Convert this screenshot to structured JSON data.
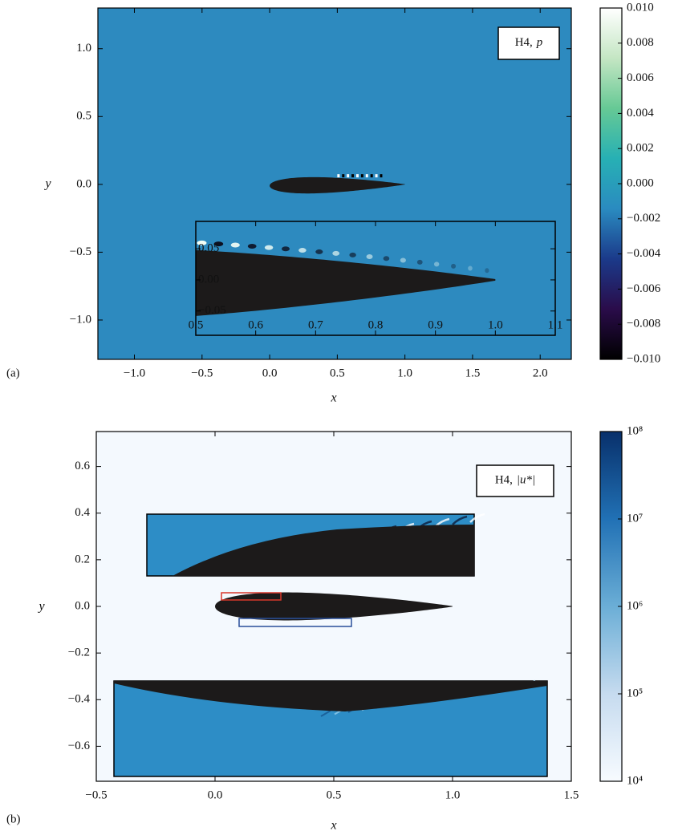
{
  "chart_data": [
    {
      "type": "heatmap",
      "panel_label": "(a)",
      "xlabel": "x",
      "ylabel": "y",
      "annotation": {
        "text": "H4,",
        "symbol": "p"
      },
      "xlim": [
        -1.27,
        2.23
      ],
      "ylim": [
        -1.29,
        1.3
      ],
      "xticks": [
        {
          "value": -1.0,
          "label": "−1.0"
        },
        {
          "value": -0.5,
          "label": "−0.5"
        },
        {
          "value": 0,
          "label": "0.0"
        },
        0.5,
        {
          "value": 1.0,
          "label": "1.0"
        },
        1.5,
        {
          "value": 2.0,
          "label": "2.0"
        }
      ],
      "yticks": [
        {
          "value": 1.0,
          "label": "1.0"
        },
        0.5,
        {
          "value": 0,
          "label": "0.0"
        },
        {
          "value": -0.5,
          "label": "−0.5"
        },
        {
          "value": -1.0,
          "label": "−1.0"
        }
      ],
      "colorbar": {
        "lim": [
          -0.01,
          0.01
        ],
        "log": false,
        "colors": [
          "#000000",
          "#2a0c4a",
          "#1b3a8a",
          "#2a8bc0",
          "#27b0b4",
          "#66c995",
          "#c4e6c3",
          "#ffffff"
        ],
        "ticks": [
          {
            "value": 0.01,
            "label": "0.010"
          },
          {
            "value": 0.008,
            "label": "0.008"
          },
          {
            "value": 0.006,
            "label": "0.006"
          },
          {
            "value": 0.004,
            "label": "0.004"
          },
          {
            "value": 0.002,
            "label": "0.002"
          },
          {
            "value": 0,
            "label": "0.000"
          },
          {
            "value": -0.002,
            "label": "−0.002"
          },
          {
            "value": -0.004,
            "label": "−0.004"
          },
          {
            "value": -0.006,
            "label": "−0.006"
          },
          {
            "value": -0.008,
            "label": "−0.008"
          },
          {
            "value": -0.01,
            "label": "−0.010"
          }
        ]
      },
      "inset": {
        "xlim": [
          0.5,
          1.1
        ],
        "ylim": [
          -0.089,
          0.094
        ],
        "xticks": [
          0.5,
          0.6,
          0.7,
          0.8,
          0.9,
          {
            "value": 1.0,
            "label": "1.0"
          },
          1.1
        ],
        "yticks": [
          0.05,
          {
            "value": 0,
            "label": "0.00"
          },
          {
            "value": -0.05,
            "label": "−0.05"
          }
        ]
      }
    },
    {
      "type": "heatmap",
      "panel_label": "(b)",
      "xlabel": "x",
      "ylabel": "y",
      "annotation": {
        "text": "H4,",
        "symbol": "|u*|"
      },
      "xlim": [
        -0.5,
        1.5
      ],
      "ylim": [
        -0.75,
        0.75
      ],
      "xticks": [
        {
          "value": -0.5,
          "label": "−0.5"
        },
        {
          "value": 0,
          "label": "0.0"
        },
        0.5,
        {
          "value": 1.0,
          "label": "1.0"
        },
        1.5
      ],
      "yticks": [
        0.6,
        0.4,
        0.2,
        {
          "value": 0,
          "label": "0.0"
        },
        {
          "value": -0.2,
          "label": "−0.2"
        },
        {
          "value": -0.4,
          "label": "−0.4"
        },
        {
          "value": -0.6,
          "label": "−0.6"
        }
      ],
      "colorbar": {
        "lim": [
          10000,
          100000000
        ],
        "log": true,
        "colors": [
          "#f7fbff",
          "#c6dbef",
          "#6baed6",
          "#2171b5",
          "#08306b"
        ],
        "ticks": [
          {
            "value": 100000000,
            "label": "10⁸"
          },
          {
            "value": 10000000,
            "label": "10⁷"
          },
          {
            "value": 1000000,
            "label": "10⁶"
          },
          {
            "value": 100000,
            "label": "10⁵"
          },
          {
            "value": 10000,
            "label": "10⁴"
          }
        ]
      }
    }
  ]
}
